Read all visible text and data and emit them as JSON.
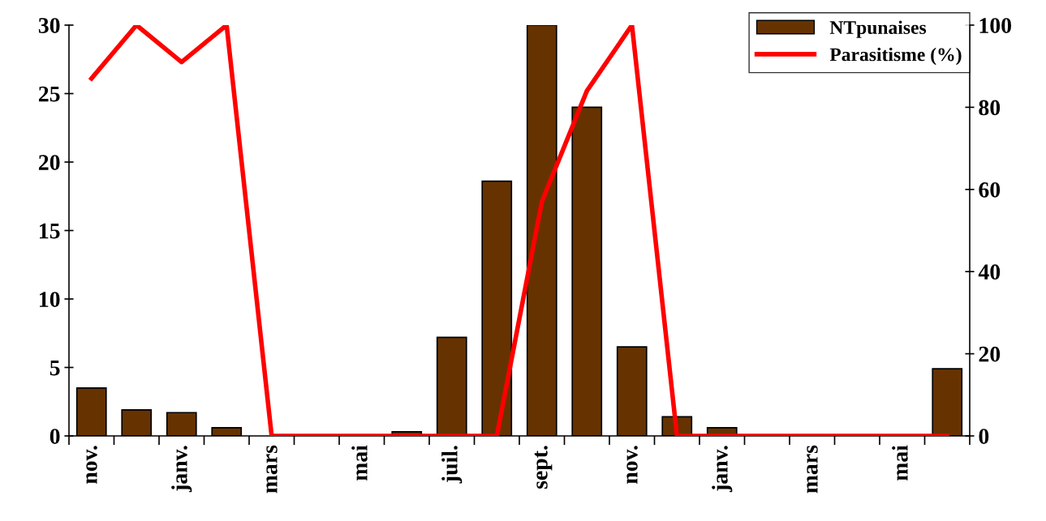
{
  "chart_data": {
    "type": "bar",
    "categories": [
      "nov.",
      null,
      "janv.",
      null,
      "mars",
      null,
      "mai",
      null,
      "juil.",
      null,
      "sept.",
      null,
      "nov.",
      null,
      "janv.",
      null,
      "mars",
      null,
      "mai",
      null
    ],
    "series": [
      {
        "name": "NTpunaises",
        "color": "#663300",
        "values": [
          3.5,
          1.9,
          1.7,
          0.6,
          0,
          0,
          0,
          0.3,
          7.2,
          18.6,
          30,
          24,
          6.5,
          1.4,
          0.6,
          0,
          0,
          0,
          0,
          4.9
        ]
      },
      {
        "name": "Parasitisme (%)",
        "type": "line",
        "axis": "y2",
        "color": "#ff0000",
        "values": [
          87,
          100,
          91,
          100,
          0,
          0,
          0,
          0,
          0,
          0,
          57,
          84,
          100,
          0,
          0,
          0,
          0,
          0,
          0,
          0
        ]
      }
    ],
    "ylim": [
      0,
      30
    ],
    "yticks": [
      0,
      5,
      10,
      15,
      20,
      25,
      30
    ],
    "y2lim": [
      0,
      100
    ],
    "y2ticks": [
      0,
      20,
      40,
      60,
      80,
      100
    ],
    "grid": false,
    "legend": "top right",
    "marker": "none",
    "line_style": "solid"
  }
}
